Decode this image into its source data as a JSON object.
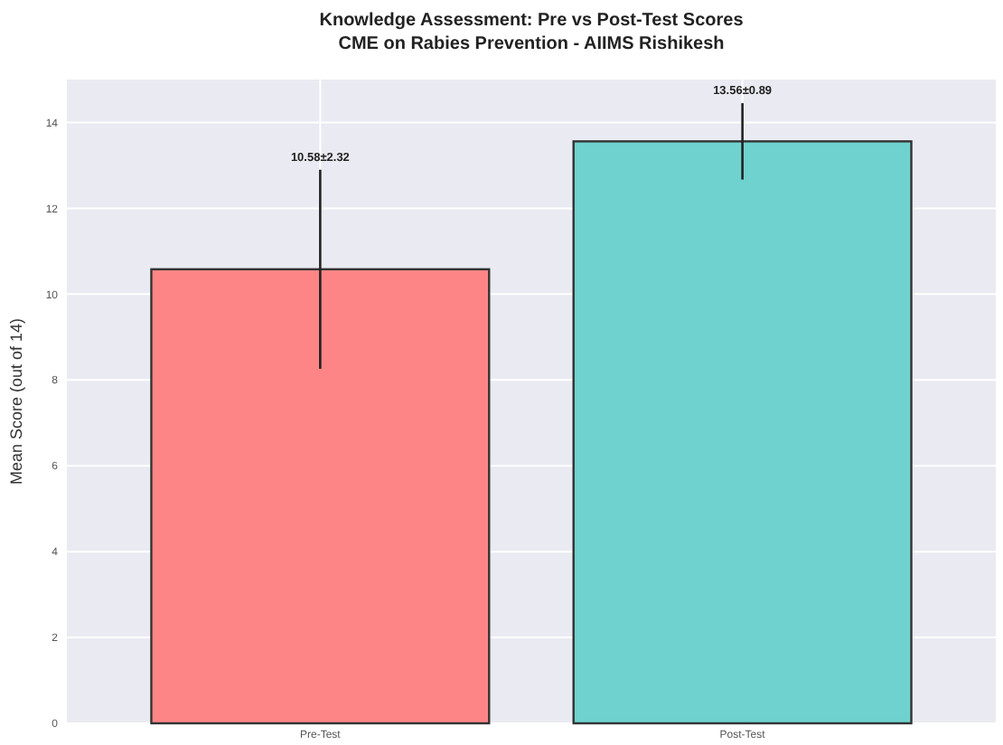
{
  "chart_data": {
    "type": "bar",
    "title": "Knowledge Assessment: Pre vs Post-Test Scores",
    "subtitle": "CME on Rabies Prevention - AIIMS Rishikesh",
    "ylabel": "Mean Score (out of 14)",
    "categories": [
      "Pre-Test",
      "Post-Test"
    ],
    "values": [
      10.58,
      13.56
    ],
    "errors": [
      2.32,
      0.89
    ],
    "annotations": [
      {
        "text": "10.58±2.32",
        "x": "Pre-Test",
        "y": 12.9
      },
      {
        "text": "13.56±0.89",
        "x": "Post-Test",
        "y": 14.45
      }
    ],
    "colors": [
      "#fe8585",
      "#6fd2cf"
    ],
    "ylim": [
      0,
      15
    ],
    "yticks": [
      0,
      2,
      4,
      6,
      8,
      10,
      12,
      14
    ],
    "grid": true
  }
}
